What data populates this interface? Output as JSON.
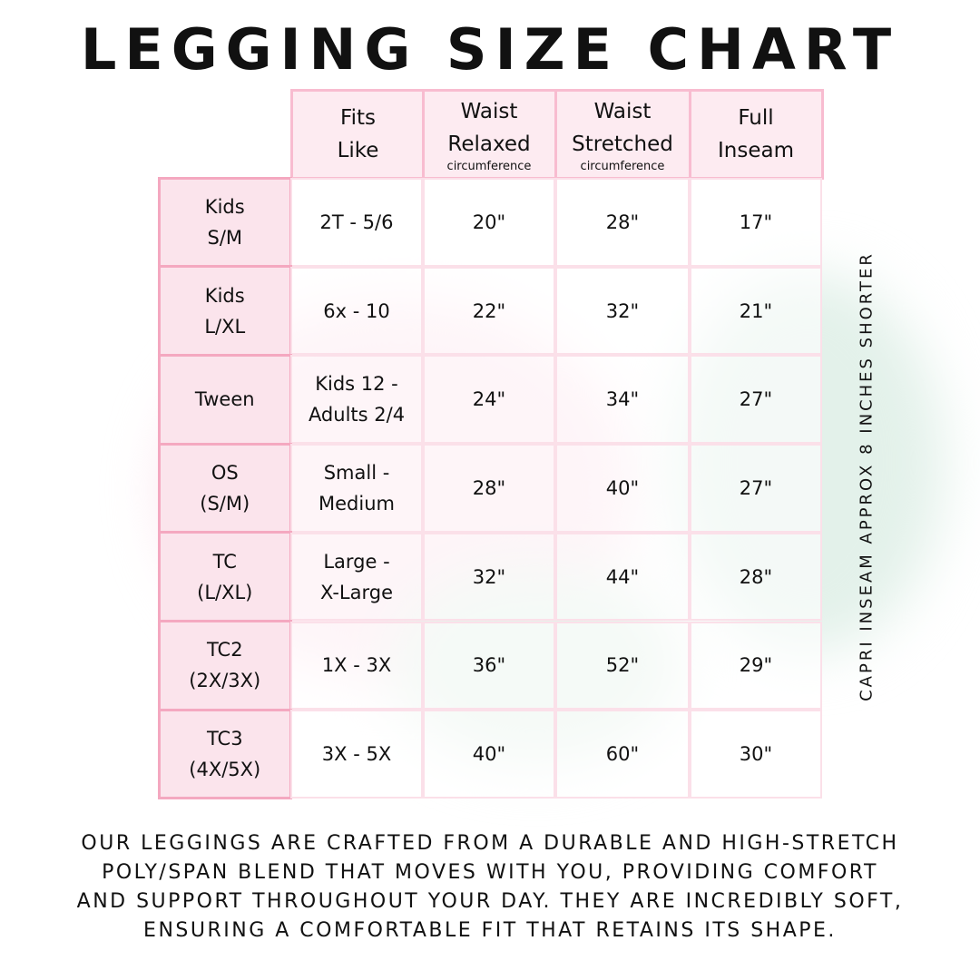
{
  "title": "LEGGING SIZE CHART",
  "table": {
    "headers": [
      {
        "line1": "Fits",
        "line2": "Like",
        "sub": ""
      },
      {
        "line1": "Waist",
        "line2": "Relaxed",
        "sub": "circumference"
      },
      {
        "line1": "Waist",
        "line2": "Stretched",
        "sub": "circumference"
      },
      {
        "line1": "Full",
        "line2": "Inseam",
        "sub": ""
      }
    ],
    "rows": [
      {
        "size": [
          "Kids",
          "S/M"
        ],
        "fits": [
          "2T - 5/6"
        ],
        "relaxed": "20\"",
        "stretched": "28\"",
        "inseam": "17\""
      },
      {
        "size": [
          "Kids",
          "L/XL"
        ],
        "fits": [
          "6x - 10"
        ],
        "relaxed": "22\"",
        "stretched": "32\"",
        "inseam": "21\""
      },
      {
        "size": [
          "Tween"
        ],
        "fits": [
          "Kids 12 -",
          "Adults 2/4"
        ],
        "relaxed": "24\"",
        "stretched": "34\"",
        "inseam": "27\""
      },
      {
        "size": [
          "OS",
          "(S/M)"
        ],
        "fits": [
          "Small -",
          "Medium"
        ],
        "relaxed": "28\"",
        "stretched": "40\"",
        "inseam": "27\""
      },
      {
        "size": [
          "TC",
          "(L/XL)"
        ],
        "fits": [
          "Large -",
          "X-Large"
        ],
        "relaxed": "32\"",
        "stretched": "44\"",
        "inseam": "28\""
      },
      {
        "size": [
          "TC2",
          "(2X/3X)"
        ],
        "fits": [
          "1X - 3X"
        ],
        "relaxed": "36\"",
        "stretched": "52\"",
        "inseam": "29\""
      },
      {
        "size": [
          "TC3",
          "(4X/5X)"
        ],
        "fits": [
          "3X - 5X"
        ],
        "relaxed": "40\"",
        "stretched": "60\"",
        "inseam": "30\""
      }
    ]
  },
  "side_note": "CAPRI INSEAM APPROX 8 INCHES SHORTER",
  "footer": [
    "Our leggings are crafted from a durable and high-stretch",
    "poly/span blend that moves with you, providing comfort",
    "and support throughout your day. They are incredibly soft,",
    "ensuring a comfortable fit that retains its shape."
  ],
  "colors": {
    "header_fill": "#fdebf1",
    "header_border": "#f8bcd0",
    "row_header_fill": "#fbe4ec",
    "row_header_border": "#f4a8c0"
  }
}
